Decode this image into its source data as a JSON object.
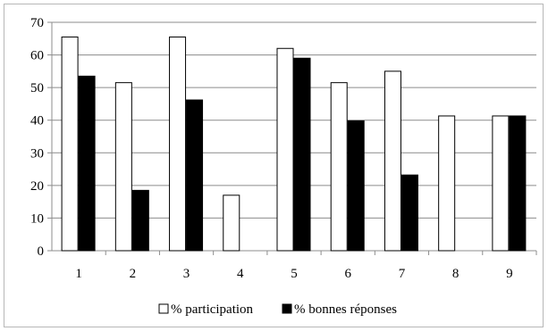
{
  "chart_data": {
    "type": "bar",
    "categories": [
      "1",
      "2",
      "3",
      "4",
      "5",
      "6",
      "7",
      "8",
      "9"
    ],
    "series": [
      {
        "name": "% participation",
        "values": [
          65.5,
          51.5,
          65.5,
          17,
          62,
          51.5,
          55,
          41.3,
          41.3
        ],
        "color": "#ffffff"
      },
      {
        "name": "% bonnes réponses",
        "values": [
          53.5,
          18.5,
          46.2,
          null,
          59,
          39.8,
          23.2,
          null,
          41.3
        ],
        "color": "#000000"
      }
    ],
    "ylim": [
      0,
      70
    ],
    "yticks": [
      0,
      10,
      20,
      30,
      40,
      50,
      60,
      70
    ],
    "grid": true,
    "legend": "bottom",
    "title": "",
    "xlabel": "",
    "ylabel": ""
  }
}
